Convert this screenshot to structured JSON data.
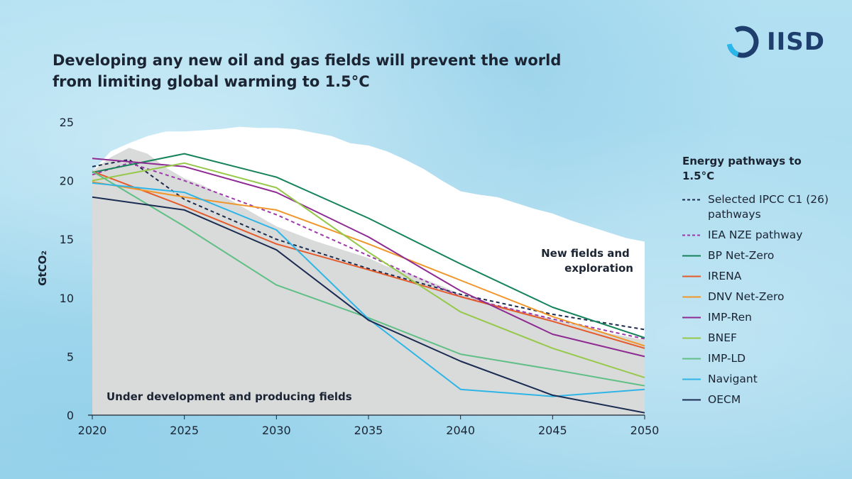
{
  "brand": {
    "name": "IISD",
    "color": "#1e3f6e",
    "accent": "#29b6e8"
  },
  "title": "Developing any new oil and gas fields will prevent the world from limiting global warming to 1.5°C",
  "chart_data": {
    "type": "line",
    "title": "Developing any new oil and gas fields will prevent the world from limiting global warming to 1.5°C",
    "xlabel": "",
    "ylabel": "GtCO₂",
    "xlim": [
      2020,
      2050
    ],
    "ylim": [
      0,
      25
    ],
    "x_ticks": [
      "2020",
      "2025",
      "2030",
      "2035",
      "2040",
      "2045",
      "2050"
    ],
    "y_ticks": [
      "0",
      "5",
      "10",
      "15",
      "20",
      "25"
    ],
    "grid": false,
    "legend_title": "Energy pathways to 1.5°C",
    "legend_position": "right",
    "areas": [
      {
        "name": "New fields and exploration",
        "label": "New fields and exploration",
        "color": "#ffffff",
        "x": [
          2020,
          2021,
          2022,
          2023,
          2024,
          2025,
          2026,
          2027,
          2028,
          2029,
          2030,
          2031,
          2032,
          2033,
          2034,
          2035,
          2036,
          2037,
          2038,
          2039,
          2040,
          2041,
          2042,
          2043,
          2044,
          2045,
          2046,
          2047,
          2048,
          2049,
          2050
        ],
        "values": [
          20.8,
          22.5,
          23.2,
          23.8,
          24.2,
          24.2,
          24.3,
          24.4,
          24.6,
          24.5,
          24.5,
          24.4,
          24.1,
          23.8,
          23.2,
          23.0,
          22.5,
          21.8,
          21.0,
          20.0,
          19.1,
          18.8,
          18.6,
          18.1,
          17.6,
          17.2,
          16.6,
          16.1,
          15.6,
          15.1,
          14.8
        ]
      },
      {
        "name": "Under development and producing fields",
        "label": "Under development and producing fields",
        "color": "#d9dbdb",
        "x": [
          2020,
          2021,
          2022,
          2023,
          2024,
          2025,
          2026,
          2027,
          2028,
          2029,
          2030,
          2031,
          2032,
          2033,
          2034,
          2035,
          2036,
          2037,
          2038,
          2039,
          2040,
          2041,
          2042,
          2043,
          2044,
          2045,
          2046,
          2047,
          2048,
          2049,
          2050
        ],
        "values": [
          20.8,
          22.0,
          22.8,
          22.3,
          21.1,
          20.2,
          19.6,
          18.8,
          17.9,
          17.0,
          16.1,
          15.5,
          14.9,
          14.4,
          13.9,
          13.4,
          12.7,
          12.2,
          11.6,
          11.0,
          10.3,
          9.9,
          9.4,
          9.0,
          8.6,
          8.2,
          7.8,
          7.4,
          7.0,
          6.7,
          6.4
        ]
      }
    ],
    "series": [
      {
        "name": "Selected IPCC C1 (26) pathways",
        "color": "#1c2a4d",
        "dash": true,
        "x": [
          2020,
          2022,
          2025,
          2030,
          2035,
          2040,
          2045,
          2050
        ],
        "values": [
          21.2,
          21.8,
          18.4,
          15.0,
          12.5,
          10.3,
          8.6,
          7.3
        ]
      },
      {
        "name": "IEA NZE pathway",
        "color": "#9b3aa8",
        "dash": true,
        "x": [
          2020,
          2022,
          2025,
          2030,
          2035,
          2040,
          2045,
          2050
        ],
        "values": [
          20.5,
          21.5,
          20.0,
          17.1,
          13.6,
          10.1,
          8.2,
          6.5
        ]
      },
      {
        "name": "BP Net-Zero",
        "color": "#16835a",
        "dash": false,
        "x": [
          2020,
          2025,
          2030,
          2035,
          2040,
          2045,
          2050
        ],
        "values": [
          20.7,
          22.3,
          20.3,
          16.8,
          12.9,
          9.2,
          6.6
        ]
      },
      {
        "name": "IRENA",
        "color": "#e55a2b",
        "dash": false,
        "x": [
          2020,
          2025,
          2030,
          2035,
          2040,
          2045,
          2050
        ],
        "values": [
          20.8,
          17.8,
          14.6,
          12.4,
          10.1,
          8.0,
          5.7
        ]
      },
      {
        "name": "DNV Net-Zero",
        "color": "#f0962a",
        "dash": false,
        "x": [
          2020,
          2025,
          2030,
          2035,
          2040,
          2045,
          2050
        ],
        "values": [
          19.9,
          18.6,
          17.5,
          14.6,
          11.5,
          8.4,
          5.9
        ]
      },
      {
        "name": "IMP-Ren",
        "color": "#8e2b92",
        "dash": false,
        "x": [
          2020,
          2025,
          2030,
          2035,
          2040,
          2045,
          2050
        ],
        "values": [
          21.9,
          21.2,
          19.0,
          15.2,
          10.6,
          6.9,
          5.0
        ]
      },
      {
        "name": "BNEF",
        "color": "#96c84a",
        "dash": false,
        "x": [
          2020,
          2025,
          2030,
          2035,
          2040,
          2045,
          2050
        ],
        "values": [
          20.0,
          21.5,
          19.4,
          13.9,
          8.8,
          5.7,
          3.2
        ]
      },
      {
        "name": "IMP-LD",
        "color": "#5fbf85",
        "dash": false,
        "x": [
          2020,
          2025,
          2030,
          2035,
          2040,
          2045,
          2050
        ],
        "values": [
          20.8,
          16.1,
          11.1,
          8.3,
          5.2,
          3.9,
          2.5
        ]
      },
      {
        "name": "Navigant",
        "color": "#2eb5e6",
        "dash": false,
        "x": [
          2020,
          2025,
          2030,
          2035,
          2040,
          2045,
          2050
        ],
        "values": [
          19.8,
          19.0,
          15.8,
          8.2,
          2.2,
          1.6,
          2.2
        ]
      },
      {
        "name": "OECM",
        "color": "#1b2c52",
        "dash": false,
        "x": [
          2020,
          2025,
          2030,
          2035,
          2040,
          2045,
          2050
        ],
        "values": [
          18.6,
          17.5,
          14.1,
          8.1,
          4.6,
          1.7,
          0.2
        ]
      }
    ],
    "legend": [
      {
        "label": "Selected IPCC C1 (26) pathways",
        "color": "#1c2a4d",
        "dash": true
      },
      {
        "label": "IEA NZE pathway",
        "color": "#9b3aa8",
        "dash": true
      },
      {
        "label": "BP Net-Zero",
        "color": "#16835a",
        "dash": false
      },
      {
        "label": "IRENA",
        "color": "#e55a2b",
        "dash": false
      },
      {
        "label": "DNV Net-Zero",
        "color": "#f0962a",
        "dash": false
      },
      {
        "label": "IMP-Ren",
        "color": "#8e2b92",
        "dash": false
      },
      {
        "label": "BNEF",
        "color": "#96c84a",
        "dash": false
      },
      {
        "label": "IMP-LD",
        "color": "#5fbf85",
        "dash": false
      },
      {
        "label": "Navigant",
        "color": "#2eb5e6",
        "dash": false
      },
      {
        "label": "OECM",
        "color": "#1b2c52",
        "dash": false
      }
    ]
  }
}
